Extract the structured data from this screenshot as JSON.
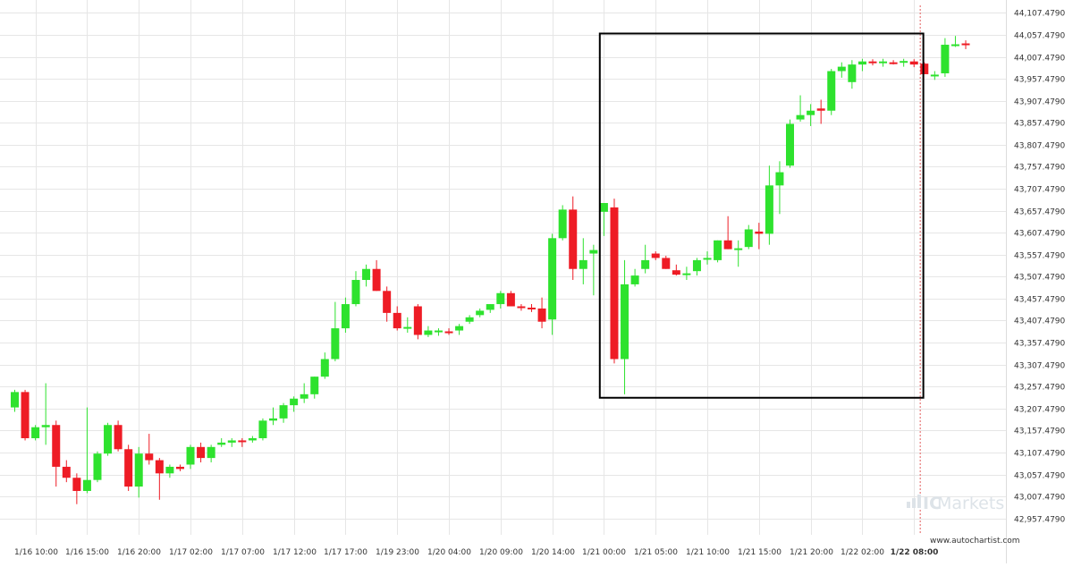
{
  "chart_data": {
    "type": "candlestick",
    "instrument_hint": "",
    "colors": {
      "up": "#2ee22e",
      "down": "#ee1c25",
      "grid": "#e6e6e6",
      "box": "#000000",
      "now_line": "#e35b5b",
      "text": "#333333"
    },
    "y_axis": {
      "ylim": [
        42932.479,
        44120.479
      ],
      "ticks": [
        {
          "value": 44107.479,
          "label": "44,107.4790"
        },
        {
          "value": 44057.479,
          "label": "44,057.4790"
        },
        {
          "value": 44007.479,
          "label": "44,007.4790"
        },
        {
          "value": 43957.479,
          "label": "43,957.4790"
        },
        {
          "value": 43907.479,
          "label": "43,907.4790"
        },
        {
          "value": 43857.479,
          "label": "43,857.4790"
        },
        {
          "value": 43807.479,
          "label": "43,807.4790"
        },
        {
          "value": 43757.479,
          "label": "43,757.4790"
        },
        {
          "value": 43707.479,
          "label": "43,707.4790"
        },
        {
          "value": 43657.479,
          "label": "43,657.4790"
        },
        {
          "value": 43607.479,
          "label": "43,607.4790"
        },
        {
          "value": 43557.479,
          "label": "43,557.4790"
        },
        {
          "value": 43507.479,
          "label": "43,507.4790"
        },
        {
          "value": 43457.479,
          "label": "43,457.4790"
        },
        {
          "value": 43407.479,
          "label": "43,407.4790"
        },
        {
          "value": 43357.479,
          "label": "43,357.4790"
        },
        {
          "value": 43307.479,
          "label": "43,307.4790"
        },
        {
          "value": 43257.479,
          "label": "43,257.4790"
        },
        {
          "value": 43207.479,
          "label": "43,207.4790"
        },
        {
          "value": 43157.479,
          "label": "43,157.4790"
        },
        {
          "value": 43107.479,
          "label": "43,107.4790"
        },
        {
          "value": 43057.479,
          "label": "43,057.4790"
        },
        {
          "value": 43007.479,
          "label": "43,007.4790"
        },
        {
          "value": 42957.479,
          "label": "42,957.4790"
        }
      ]
    },
    "x_axis": {
      "ticks": [
        {
          "index": 2,
          "label": "1/16 10:00",
          "bold": false
        },
        {
          "index": 7,
          "label": "1/16 15:00",
          "bold": false
        },
        {
          "index": 12,
          "label": "1/16 20:00",
          "bold": false
        },
        {
          "index": 17,
          "label": "1/17 02:00",
          "bold": false
        },
        {
          "index": 22,
          "label": "1/17 07:00",
          "bold": false
        },
        {
          "index": 27,
          "label": "1/17 12:00",
          "bold": false
        },
        {
          "index": 32,
          "label": "1/17 17:00",
          "bold": false
        },
        {
          "index": 37,
          "label": "1/19 23:00",
          "bold": false
        },
        {
          "index": 42,
          "label": "1/20 04:00",
          "bold": false
        },
        {
          "index": 47,
          "label": "1/20 09:00",
          "bold": false
        },
        {
          "index": 52,
          "label": "1/20 14:00",
          "bold": false
        },
        {
          "index": 57,
          "label": "1/21 00:00",
          "bold": false
        },
        {
          "index": 62,
          "label": "1/21 05:00",
          "bold": false
        },
        {
          "index": 67,
          "label": "1/21 10:00",
          "bold": false
        },
        {
          "index": 72,
          "label": "1/21 15:00",
          "bold": false
        },
        {
          "index": 77,
          "label": "1/21 20:00",
          "bold": false
        },
        {
          "index": 82,
          "label": "1/22 02:00",
          "bold": false
        },
        {
          "index": 87,
          "label": "1/22 08:00",
          "bold": true
        }
      ]
    },
    "candles": [
      {
        "o": 43210,
        "h": 43250,
        "l": 43200,
        "c": 43245
      },
      {
        "o": 43245,
        "h": 43250,
        "l": 43135,
        "c": 43140
      },
      {
        "o": 43140,
        "h": 43170,
        "l": 43135,
        "c": 43165
      },
      {
        "o": 43165,
        "h": 43265,
        "l": 43125,
        "c": 43170
      },
      {
        "o": 43170,
        "h": 43180,
        "l": 43030,
        "c": 43075
      },
      {
        "o": 43075,
        "h": 43090,
        "l": 43040,
        "c": 43050
      },
      {
        "o": 43050,
        "h": 43060,
        "l": 42990,
        "c": 43020
      },
      {
        "o": 43020,
        "h": 43210,
        "l": 43015,
        "c": 43045
      },
      {
        "o": 43045,
        "h": 43110,
        "l": 43040,
        "c": 43105
      },
      {
        "o": 43105,
        "h": 43175,
        "l": 43100,
        "c": 43170
      },
      {
        "o": 43170,
        "h": 43180,
        "l": 43110,
        "c": 43115
      },
      {
        "o": 43115,
        "h": 43125,
        "l": 43020,
        "c": 43030
      },
      {
        "o": 43030,
        "h": 43120,
        "l": 43005,
        "c": 43105
      },
      {
        "o": 43105,
        "h": 43150,
        "l": 43080,
        "c": 43090
      },
      {
        "o": 43090,
        "h": 43095,
        "l": 43000,
        "c": 43060
      },
      {
        "o": 43060,
        "h": 43080,
        "l": 43050,
        "c": 43075
      },
      {
        "o": 43075,
        "h": 43080,
        "l": 43065,
        "c": 43070
      },
      {
        "o": 43080,
        "h": 43125,
        "l": 43070,
        "c": 43120
      },
      {
        "o": 43120,
        "h": 43130,
        "l": 43085,
        "c": 43095
      },
      {
        "o": 43095,
        "h": 43125,
        "l": 43085,
        "c": 43120
      },
      {
        "o": 43125,
        "h": 43140,
        "l": 43120,
        "c": 43130
      },
      {
        "o": 43130,
        "h": 43140,
        "l": 43120,
        "c": 43135
      },
      {
        "o": 43135,
        "h": 43140,
        "l": 43120,
        "c": 43132
      },
      {
        "o": 43135,
        "h": 43145,
        "l": 43130,
        "c": 43140
      },
      {
        "o": 43140,
        "h": 43185,
        "l": 43135,
        "c": 43180
      },
      {
        "o": 43180,
        "h": 43210,
        "l": 43170,
        "c": 43185
      },
      {
        "o": 43185,
        "h": 43220,
        "l": 43175,
        "c": 43215
      },
      {
        "o": 43215,
        "h": 43235,
        "l": 43200,
        "c": 43230
      },
      {
        "o": 43230,
        "h": 43265,
        "l": 43220,
        "c": 43240
      },
      {
        "o": 43240,
        "h": 43280,
        "l": 43230,
        "c": 43280
      },
      {
        "o": 43280,
        "h": 43335,
        "l": 43275,
        "c": 43320
      },
      {
        "o": 43320,
        "h": 43450,
        "l": 43315,
        "c": 43390
      },
      {
        "o": 43390,
        "h": 43460,
        "l": 43380,
        "c": 43445
      },
      {
        "o": 43445,
        "h": 43520,
        "l": 43440,
        "c": 43500
      },
      {
        "o": 43500,
        "h": 43535,
        "l": 43485,
        "c": 43525
      },
      {
        "o": 43525,
        "h": 43545,
        "l": 43475,
        "c": 43475
      },
      {
        "o": 43475,
        "h": 43485,
        "l": 43405,
        "c": 43425
      },
      {
        "o": 43425,
        "h": 43440,
        "l": 43385,
        "c": 43390
      },
      {
        "o": 43390,
        "h": 43415,
        "l": 43380,
        "c": 43393
      },
      {
        "o": 43440,
        "h": 43445,
        "l": 43365,
        "c": 43375
      },
      {
        "o": 43375,
        "h": 43395,
        "l": 43370,
        "c": 43385
      },
      {
        "o": 43383,
        "h": 43390,
        "l": 43373,
        "c": 43385
      },
      {
        "o": 43383,
        "h": 43390,
        "l": 43375,
        "c": 43381
      },
      {
        "o": 43385,
        "h": 43400,
        "l": 43375,
        "c": 43395
      },
      {
        "o": 43405,
        "h": 43420,
        "l": 43400,
        "c": 43415
      },
      {
        "o": 43420,
        "h": 43435,
        "l": 43415,
        "c": 43430
      },
      {
        "o": 43432,
        "h": 43445,
        "l": 43425,
        "c": 43445
      },
      {
        "o": 43445,
        "h": 43475,
        "l": 43435,
        "c": 43470
      },
      {
        "o": 43470,
        "h": 43475,
        "l": 43440,
        "c": 43440
      },
      {
        "o": 43440,
        "h": 43445,
        "l": 43430,
        "c": 43437
      },
      {
        "o": 43437,
        "h": 43445,
        "l": 43427,
        "c": 43434
      },
      {
        "o": 43435,
        "h": 43460,
        "l": 43390,
        "c": 43405
      },
      {
        "o": 43410,
        "h": 43605,
        "l": 43375,
        "c": 43595
      },
      {
        "o": 43595,
        "h": 43670,
        "l": 43590,
        "c": 43660
      },
      {
        "o": 43660,
        "h": 43690,
        "l": 43500,
        "c": 43525
      },
      {
        "o": 43525,
        "h": 43595,
        "l": 43490,
        "c": 43545
      },
      {
        "o": 43560,
        "h": 43580,
        "l": 43465,
        "c": 43568
      },
      {
        "o": 43655,
        "h": 43675,
        "l": 43600,
        "c": 43675
      },
      {
        "o": 43665,
        "h": 43685,
        "l": 43310,
        "c": 43320
      },
      {
        "o": 43320,
        "h": 43545,
        "l": 43240,
        "c": 43490
      },
      {
        "o": 43490,
        "h": 43525,
        "l": 43485,
        "c": 43510
      },
      {
        "o": 43525,
        "h": 43580,
        "l": 43515,
        "c": 43545
      },
      {
        "o": 43560,
        "h": 43565,
        "l": 43545,
        "c": 43550
      },
      {
        "o": 43550,
        "h": 43555,
        "l": 43525,
        "c": 43525
      },
      {
        "o": 43522,
        "h": 43535,
        "l": 43510,
        "c": 43512
      },
      {
        "o": 43512,
        "h": 43530,
        "l": 43500,
        "c": 43515
      },
      {
        "o": 43520,
        "h": 43550,
        "l": 43510,
        "c": 43545
      },
      {
        "o": 43548,
        "h": 43565,
        "l": 43535,
        "c": 43550
      },
      {
        "o": 43545,
        "h": 43590,
        "l": 43540,
        "c": 43590
      },
      {
        "o": 43590,
        "h": 43645,
        "l": 43570,
        "c": 43570
      },
      {
        "o": 43568,
        "h": 43590,
        "l": 43530,
        "c": 43572
      },
      {
        "o": 43575,
        "h": 43625,
        "l": 43570,
        "c": 43615
      },
      {
        "o": 43610,
        "h": 43630,
        "l": 43570,
        "c": 43605
      },
      {
        "o": 43605,
        "h": 43760,
        "l": 43580,
        "c": 43715
      },
      {
        "o": 43715,
        "h": 43770,
        "l": 43650,
        "c": 43745
      },
      {
        "o": 43760,
        "h": 43865,
        "l": 43755,
        "c": 43855
      },
      {
        "o": 43865,
        "h": 43920,
        "l": 43860,
        "c": 43875
      },
      {
        "o": 43875,
        "h": 43900,
        "l": 43850,
        "c": 43885
      },
      {
        "o": 43890,
        "h": 43910,
        "l": 43855,
        "c": 43885
      },
      {
        "o": 43885,
        "h": 43980,
        "l": 43875,
        "c": 43975
      },
      {
        "o": 43975,
        "h": 43995,
        "l": 43960,
        "c": 43985
      },
      {
        "o": 43950,
        "h": 44000,
        "l": 43935,
        "c": 43990
      },
      {
        "o": 43990,
        "h": 44003,
        "l": 43975,
        "c": 43997
      },
      {
        "o": 43997,
        "h": 44002,
        "l": 43988,
        "c": 43995
      },
      {
        "o": 43995,
        "h": 44003,
        "l": 43985,
        "c": 43997
      },
      {
        "o": 43995,
        "h": 44000,
        "l": 43990,
        "c": 43992
      },
      {
        "o": 43995,
        "h": 44003,
        "l": 43985,
        "c": 43998
      },
      {
        "o": 43997,
        "h": 44002,
        "l": 43984,
        "c": 43990
      },
      {
        "o": 43992,
        "h": 43995,
        "l": 43968,
        "c": 43968
      },
      {
        "o": 43963,
        "h": 43975,
        "l": 43955,
        "c": 43967
      },
      {
        "o": 43970,
        "h": 44050,
        "l": 43962,
        "c": 44035
      },
      {
        "o": 44033,
        "h": 44055,
        "l": 44030,
        "c": 44036
      },
      {
        "o": 44038,
        "h": 44045,
        "l": 44025,
        "c": 44034
      }
    ],
    "pattern_box": {
      "start_index": 56.6,
      "end_index": 87.9,
      "top": 44060.5,
      "bottom": 43232
    },
    "now_index": 87.6,
    "grid": true
  },
  "watermark": {
    "brand_prefix": "IC",
    "brand_name": "Markets",
    "site": "www.autochartist.com"
  }
}
